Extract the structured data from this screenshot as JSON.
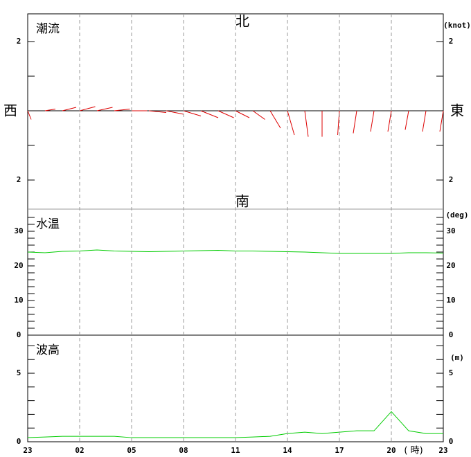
{
  "chart_data": [
    {
      "type": "vector",
      "title": "潮流",
      "north_label": "北",
      "south_label": "南",
      "west_label": "西",
      "east_label": "東",
      "unit": "(knot)",
      "east": [
        0.1,
        0.3,
        0.4,
        0.45,
        0.45,
        0.45,
        0.45,
        0.5,
        0.5,
        0.5,
        0.5,
        0.45,
        0.4,
        0.35,
        0.3,
        0.2,
        0.1,
        0.0,
        -0.05,
        -0.1,
        -0.1,
        -0.1,
        -0.1,
        -0.1,
        -0.1
      ],
      "north": [
        -0.25,
        0.05,
        0.1,
        0.12,
        0.1,
        0.05,
        0.0,
        -0.05,
        -0.1,
        -0.15,
        -0.2,
        -0.2,
        -0.2,
        -0.25,
        -0.5,
        -0.7,
        -0.75,
        -0.75,
        -0.7,
        -0.65,
        -0.6,
        -0.6,
        -0.55,
        -0.6,
        -0.6
      ],
      "color": "#dd0000",
      "ylim": [
        -2.84,
        2.8
      ],
      "yticks": [
        {
          "value": 2,
          "label": "2"
        },
        {
          "value": -2,
          "label": "2"
        }
      ],
      "minor_yticks": [
        -1,
        0,
        1
      ]
    },
    {
      "type": "line",
      "title": "水温",
      "unit": "(deg)",
      "color": "#00cc00",
      "values": [
        24.0,
        23.8,
        24.2,
        24.3,
        24.6,
        24.3,
        24.2,
        24.1,
        24.2,
        24.3,
        24.4,
        24.5,
        24.3,
        24.3,
        24.2,
        24.1,
        24.0,
        23.8,
        23.6,
        23.6,
        23.6,
        23.6,
        23.8,
        23.8,
        23.7
      ],
      "ylim": [
        0,
        36.4
      ],
      "yticks": [
        0,
        10,
        20,
        30
      ],
      "minor_yticks": [
        2,
        4,
        6,
        8,
        12,
        14,
        16,
        18,
        22,
        24,
        26,
        28,
        32,
        34
      ]
    },
    {
      "type": "line",
      "title": "波高",
      "unit": "(m)",
      "color": "#00cc00",
      "values": [
        0.3,
        0.35,
        0.4,
        0.4,
        0.4,
        0.4,
        0.3,
        0.3,
        0.3,
        0.3,
        0.3,
        0.3,
        0.3,
        0.35,
        0.4,
        0.6,
        0.7,
        0.6,
        0.7,
        0.8,
        0.8,
        2.2,
        0.8,
        0.6,
        0.6
      ],
      "ylim": [
        0,
        7.78
      ],
      "yticks": [
        0,
        5
      ],
      "minor_yticks": [
        1,
        2,
        3,
        4,
        6,
        7
      ],
      "x_tick_labels": [
        "23",
        "02",
        "05",
        "08",
        "11",
        "14",
        "17",
        "20",
        "23"
      ],
      "x_unit": "( 時)"
    }
  ]
}
